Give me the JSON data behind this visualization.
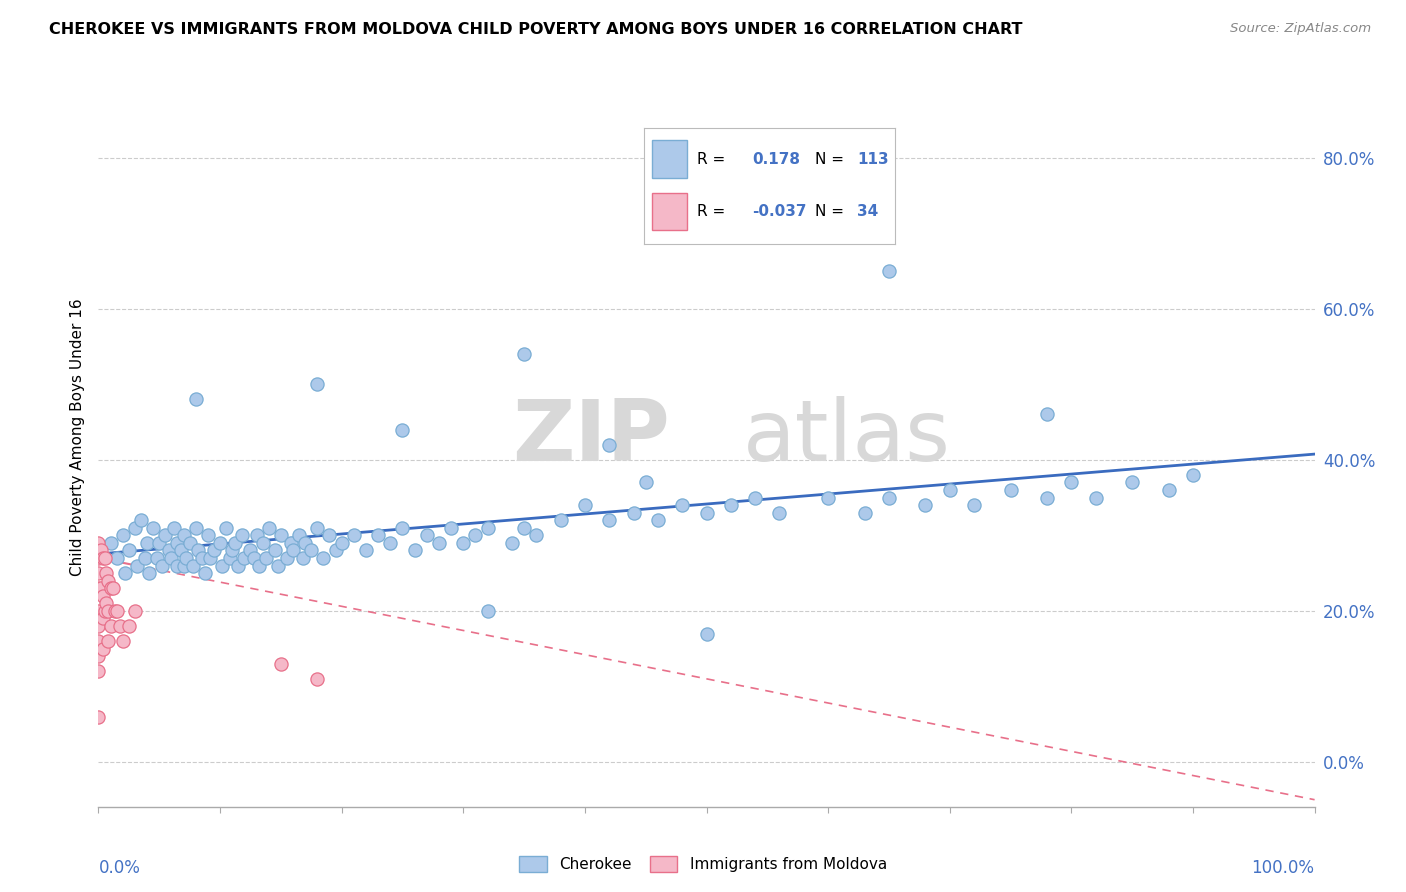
{
  "title": "CHEROKEE VS IMMIGRANTS FROM MOLDOVA CHILD POVERTY AMONG BOYS UNDER 16 CORRELATION CHART",
  "source": "Source: ZipAtlas.com",
  "ylabel": "Child Poverty Among Boys Under 16",
  "xlim": [
    0.0,
    1.0
  ],
  "ylim": [
    -0.06,
    0.92
  ],
  "yticks": [
    0.0,
    0.2,
    0.4,
    0.6,
    0.8
  ],
  "ytick_labels": [
    "0.0%",
    "20.0%",
    "40.0%",
    "60.0%",
    "80.0%"
  ],
  "cherokee_R": 0.178,
  "cherokee_N": 113,
  "moldova_R": -0.037,
  "moldova_N": 34,
  "cherokee_color": "#adc9ea",
  "cherokee_edge": "#7aadd4",
  "moldova_color": "#f5b8c8",
  "moldova_edge": "#e8708a",
  "cherokee_line_color": "#3a6bbf",
  "moldova_line_color": "#e8708a",
  "watermark_color": "#e0e0e0",
  "cherokee_x": [
    0.01,
    0.015,
    0.02,
    0.022,
    0.025,
    0.03,
    0.032,
    0.035,
    0.038,
    0.04,
    0.042,
    0.045,
    0.048,
    0.05,
    0.052,
    0.055,
    0.058,
    0.06,
    0.062,
    0.065,
    0.065,
    0.068,
    0.07,
    0.07,
    0.072,
    0.075,
    0.078,
    0.08,
    0.082,
    0.085,
    0.088,
    0.09,
    0.092,
    0.095,
    0.1,
    0.102,
    0.105,
    0.108,
    0.11,
    0.112,
    0.115,
    0.118,
    0.12,
    0.125,
    0.128,
    0.13,
    0.132,
    0.135,
    0.138,
    0.14,
    0.145,
    0.148,
    0.15,
    0.155,
    0.158,
    0.16,
    0.165,
    0.168,
    0.17,
    0.175,
    0.18,
    0.185,
    0.19,
    0.195,
    0.2,
    0.21,
    0.22,
    0.23,
    0.24,
    0.25,
    0.26,
    0.27,
    0.28,
    0.29,
    0.3,
    0.31,
    0.32,
    0.34,
    0.35,
    0.36,
    0.38,
    0.4,
    0.42,
    0.44,
    0.45,
    0.46,
    0.48,
    0.5,
    0.52,
    0.54,
    0.56,
    0.6,
    0.63,
    0.65,
    0.68,
    0.7,
    0.72,
    0.75,
    0.78,
    0.8,
    0.82,
    0.85,
    0.88,
    0.9,
    0.25,
    0.42,
    0.65,
    0.78,
    0.5,
    0.35,
    0.18,
    0.32,
    0.08
  ],
  "cherokee_y": [
    0.29,
    0.27,
    0.3,
    0.25,
    0.28,
    0.31,
    0.26,
    0.32,
    0.27,
    0.29,
    0.25,
    0.31,
    0.27,
    0.29,
    0.26,
    0.3,
    0.28,
    0.27,
    0.31,
    0.29,
    0.26,
    0.28,
    0.26,
    0.3,
    0.27,
    0.29,
    0.26,
    0.31,
    0.28,
    0.27,
    0.25,
    0.3,
    0.27,
    0.28,
    0.29,
    0.26,
    0.31,
    0.27,
    0.28,
    0.29,
    0.26,
    0.3,
    0.27,
    0.28,
    0.27,
    0.3,
    0.26,
    0.29,
    0.27,
    0.31,
    0.28,
    0.26,
    0.3,
    0.27,
    0.29,
    0.28,
    0.3,
    0.27,
    0.29,
    0.28,
    0.31,
    0.27,
    0.3,
    0.28,
    0.29,
    0.3,
    0.28,
    0.3,
    0.29,
    0.31,
    0.28,
    0.3,
    0.29,
    0.31,
    0.29,
    0.3,
    0.31,
    0.29,
    0.31,
    0.3,
    0.32,
    0.34,
    0.32,
    0.33,
    0.37,
    0.32,
    0.34,
    0.33,
    0.34,
    0.35,
    0.33,
    0.35,
    0.33,
    0.35,
    0.34,
    0.36,
    0.34,
    0.36,
    0.35,
    0.37,
    0.35,
    0.37,
    0.36,
    0.38,
    0.44,
    0.42,
    0.65,
    0.46,
    0.17,
    0.54,
    0.5,
    0.2,
    0.48
  ],
  "moldova_x": [
    0.0,
    0.0,
    0.0,
    0.0,
    0.0,
    0.0,
    0.0,
    0.0,
    0.0,
    0.0,
    0.002,
    0.002,
    0.004,
    0.004,
    0.004,
    0.004,
    0.005,
    0.005,
    0.006,
    0.006,
    0.008,
    0.008,
    0.008,
    0.01,
    0.01,
    0.012,
    0.014,
    0.015,
    0.018,
    0.02,
    0.025,
    0.03,
    0.15,
    0.18
  ],
  "moldova_y": [
    0.29,
    0.27,
    0.25,
    0.23,
    0.2,
    0.18,
    0.16,
    0.14,
    0.12,
    0.06,
    0.28,
    0.23,
    0.27,
    0.22,
    0.19,
    0.15,
    0.27,
    0.2,
    0.25,
    0.21,
    0.24,
    0.2,
    0.16,
    0.23,
    0.18,
    0.23,
    0.2,
    0.2,
    0.18,
    0.16,
    0.18,
    0.2,
    0.13,
    0.11
  ],
  "moldova_line_x0": 0.0,
  "moldova_line_y0": 0.27,
  "moldova_line_x1": 1.0,
  "moldova_line_y1": -0.05
}
